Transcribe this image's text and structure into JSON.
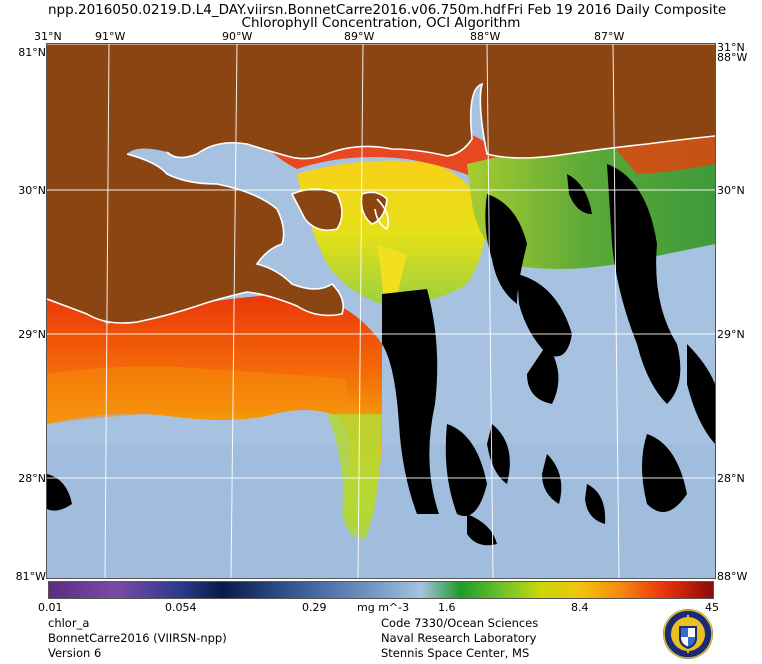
{
  "header": {
    "filename": "npp.2016050.0219.D.L4_DAY.viirsn.BonnetCarre2016.v06.750m.hdf",
    "date": "Fri Feb 19 2016 Daily Composite",
    "subtitle": "Chlorophyll Concentration, OCI Algorithm"
  },
  "map": {
    "longitude_labels": [
      "91°W",
      "90°W",
      "89°W",
      "88°W",
      "87°W"
    ],
    "latitude_labels": [
      "31°N",
      "30°N",
      "29°N",
      "28°N"
    ],
    "corner_labels": {
      "top_left_overlap": "81°N",
      "bottom_left_overlap": "81°W",
      "top_right_overlap": "88°W",
      "bottom_right_overlap": "88°W",
      "right_top": "31°N"
    },
    "colors": {
      "land": "#8B4513",
      "low_chlorophyll_water": "#a7c2e0",
      "no_data": "#000000",
      "coastline": "#ffffff"
    }
  },
  "colorbar": {
    "ticks": [
      "0.01",
      "0.054",
      "0.29",
      "1.6",
      "8.4",
      "45"
    ],
    "unit": "mg m^-3",
    "scale": "log",
    "range": [
      0.01,
      45
    ]
  },
  "footer": {
    "left": [
      "chlor_a",
      "BonnetCarre2016 (VIIRSN-npp)",
      "Version 6"
    ],
    "right": [
      "Code 7330/Ocean Sciences",
      "Naval Research Laboratory",
      "Stennis Space Center, MS"
    ]
  }
}
